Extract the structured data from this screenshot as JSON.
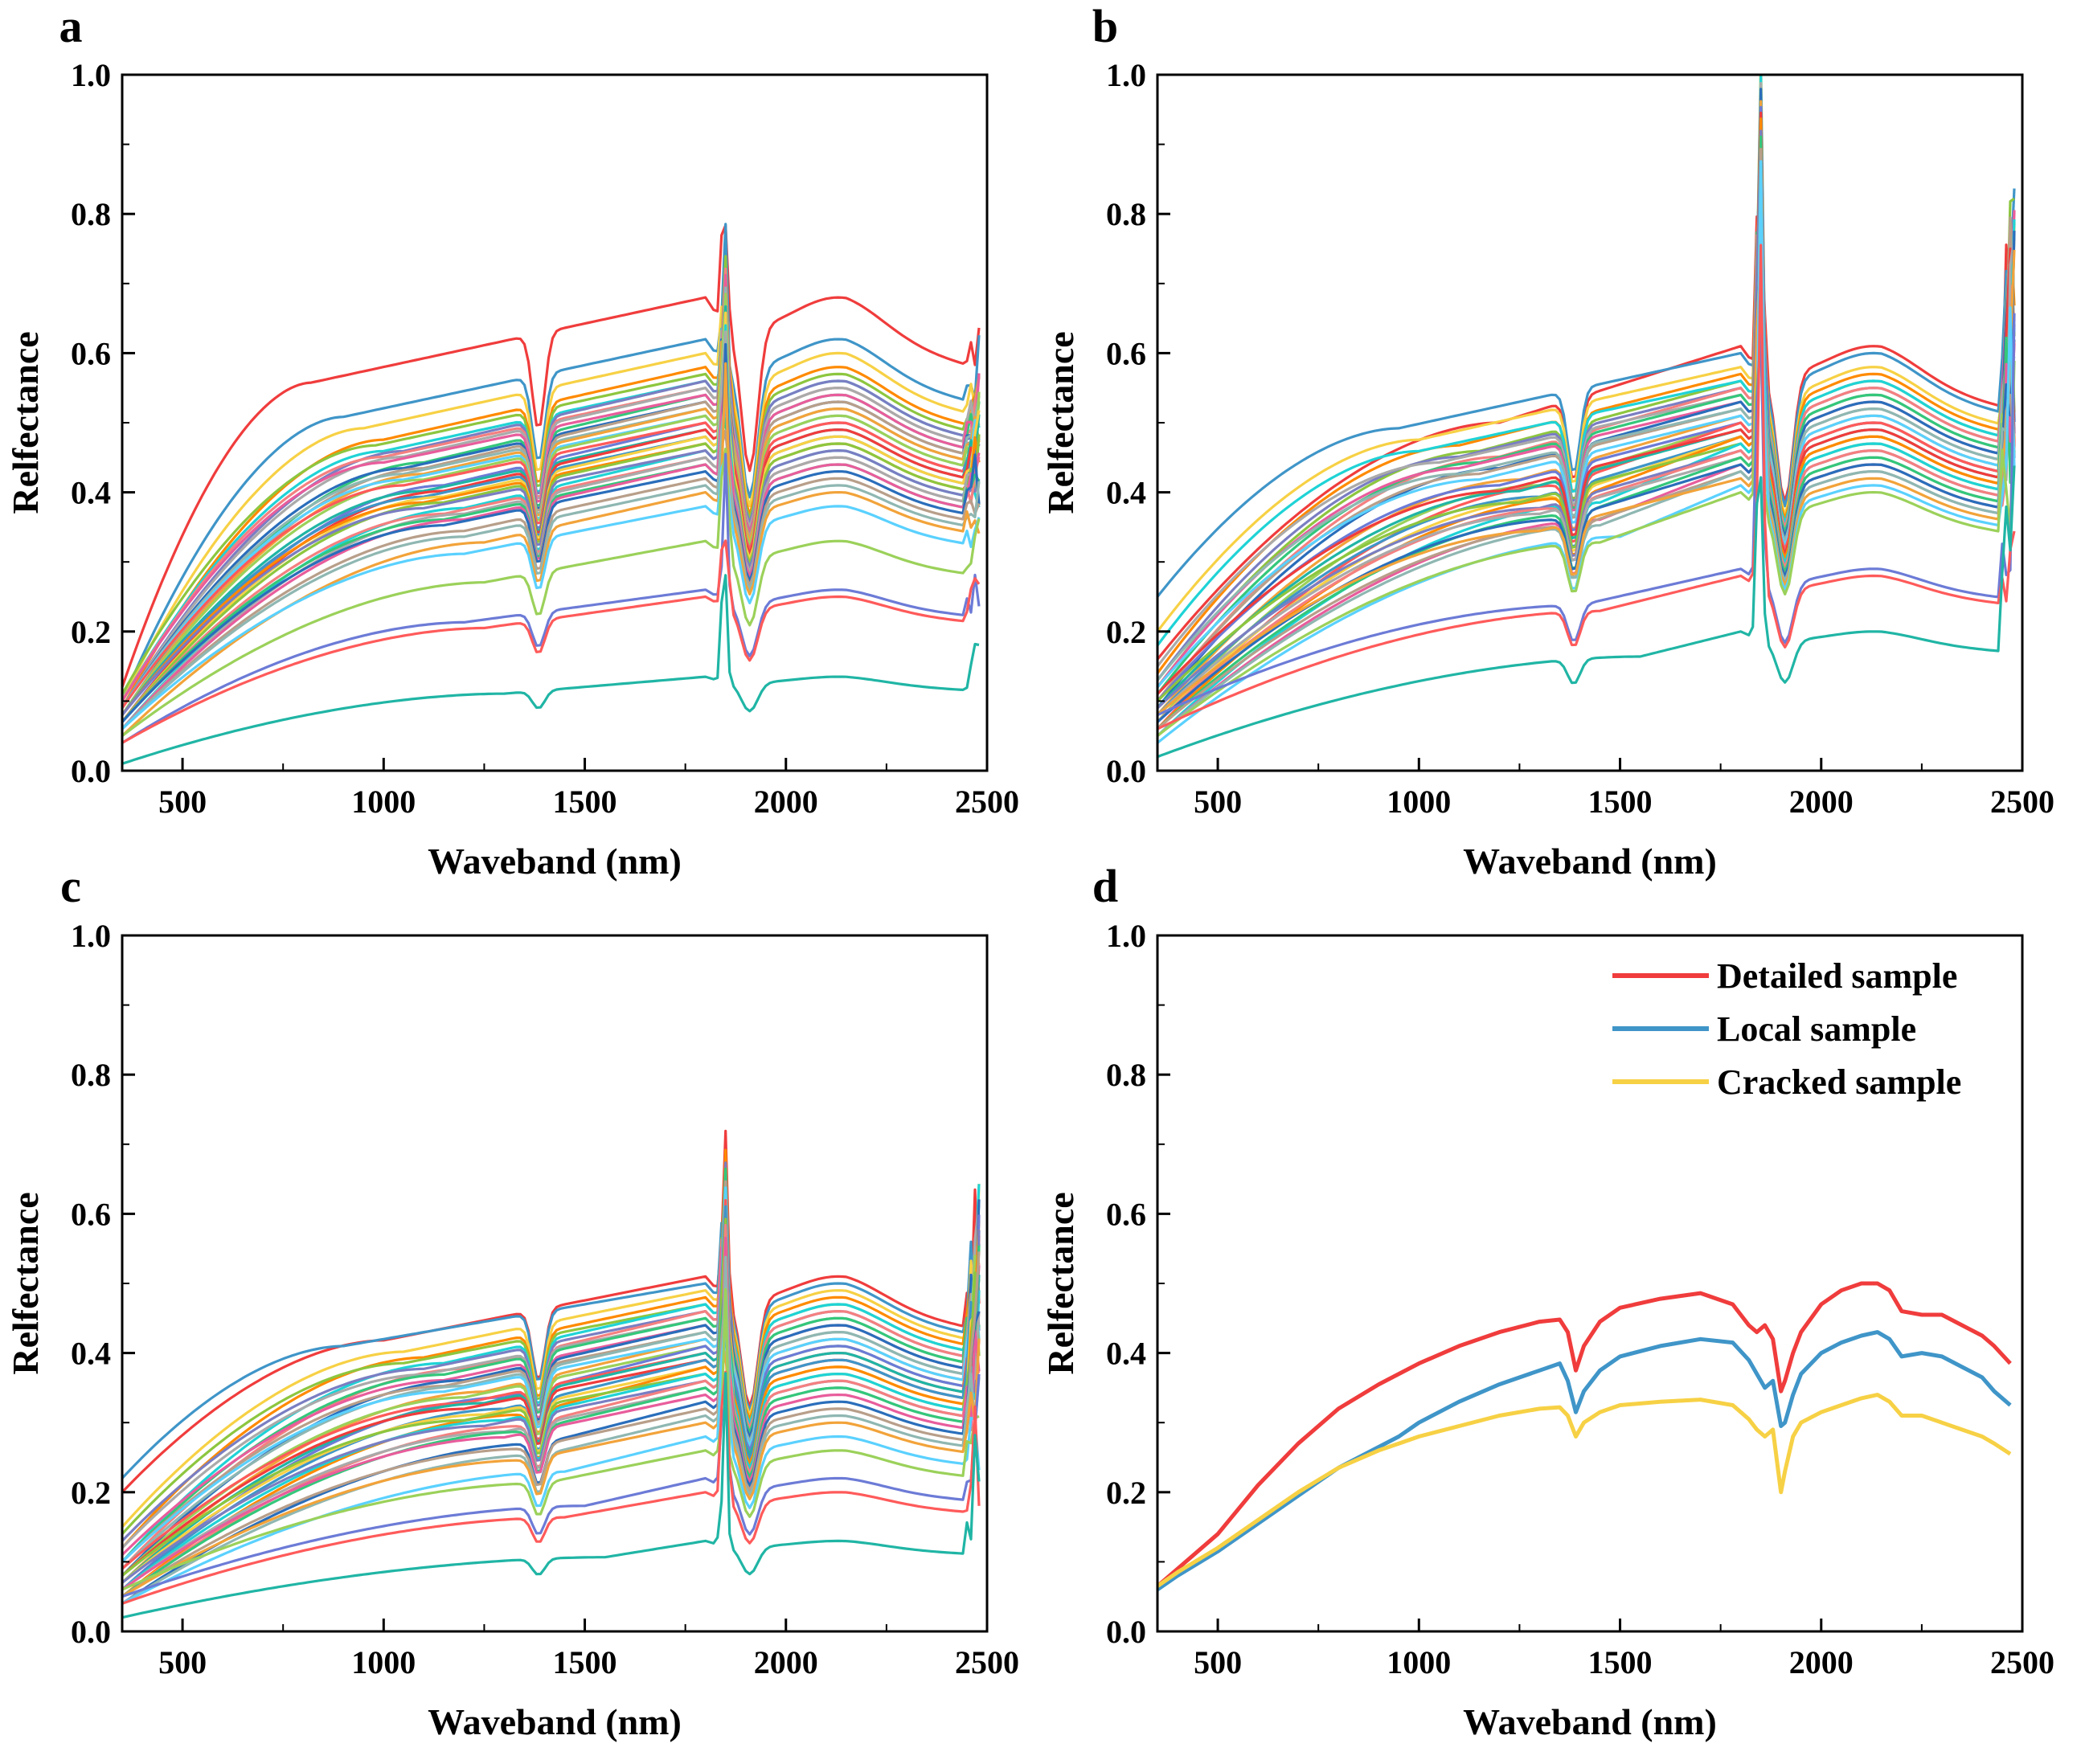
{
  "figure": {
    "background": "#ffffff"
  },
  "chart_data": [
    {
      "panel": "a",
      "type": "line",
      "xlabel": "Waveband (nm)",
      "ylabel": "Relfectance",
      "xlim": [
        350,
        2500
      ],
      "ylim": [
        0,
        1.0
      ],
      "xticks": [
        500,
        1000,
        1500,
        2000,
        2500
      ],
      "yticks": [
        0.0,
        0.2,
        0.4,
        0.6,
        0.8,
        1.0
      ],
      "ytick_labels": [
        "0.0",
        "0.2",
        "0.4",
        "0.6",
        "0.8",
        "1.0"
      ],
      "series_template": "leaf",
      "spectra_plateau": [
        0.68,
        0.62,
        0.6,
        0.58,
        0.57,
        0.56,
        0.56,
        0.55,
        0.55,
        0.54,
        0.54,
        0.53,
        0.53,
        0.52,
        0.52,
        0.51,
        0.51,
        0.5,
        0.5,
        0.49,
        0.49,
        0.48,
        0.48,
        0.47,
        0.47,
        0.46,
        0.46,
        0.45,
        0.45,
        0.44,
        0.44,
        0.43,
        0.42,
        0.41,
        0.4,
        0.38,
        0.33,
        0.26,
        0.25,
        0.135
      ],
      "spectra_start": [
        0.12,
        0.1,
        0.1,
        0.09,
        0.11,
        0.1,
        0.09,
        0.1,
        0.09,
        0.08,
        0.1,
        0.09,
        0.08,
        0.09,
        0.08,
        0.09,
        0.08,
        0.07,
        0.09,
        0.08,
        0.07,
        0.08,
        0.07,
        0.08,
        0.07,
        0.06,
        0.08,
        0.07,
        0.06,
        0.07,
        0.06,
        0.07,
        0.06,
        0.06,
        0.05,
        0.06,
        0.05,
        0.04,
        0.04,
        0.01
      ],
      "spectra_knee": [
        820,
        900,
        950,
        1000,
        980,
        1000,
        1050,
        1000,
        1050,
        1100,
        1000,
        1050,
        1100,
        1050,
        1100,
        1050,
        1100,
        1150,
        1050,
        1100,
        1150,
        1100,
        1150,
        1100,
        1150,
        1200,
        1100,
        1150,
        1200,
        1150,
        1200,
        1150,
        1200,
        1200,
        1250,
        1200,
        1250,
        1200,
        1250,
        1300
      ],
      "peak_1850": 0.2,
      "spike_2470": 0.08
    },
    {
      "panel": "b",
      "type": "line",
      "xlabel": "Waveband (nm)",
      "ylabel": "Relfectance",
      "xlim": [
        350,
        2500
      ],
      "ylim": [
        0,
        1.0
      ],
      "xticks": [
        500,
        1000,
        1500,
        2000,
        2500
      ],
      "yticks": [
        0.0,
        0.2,
        0.4,
        0.6,
        0.8,
        1.0
      ],
      "ytick_labels": [
        "0.0",
        "0.2",
        "0.4",
        "0.6",
        "0.8",
        "1.0"
      ],
      "series_template": "leaf",
      "spectra_plateau": [
        0.61,
        0.6,
        0.58,
        0.57,
        0.56,
        0.56,
        0.55,
        0.55,
        0.54,
        0.54,
        0.53,
        0.53,
        0.52,
        0.52,
        0.51,
        0.51,
        0.5,
        0.5,
        0.5,
        0.49,
        0.49,
        0.48,
        0.48,
        0.48,
        0.47,
        0.47,
        0.46,
        0.46,
        0.45,
        0.45,
        0.44,
        0.44,
        0.43,
        0.43,
        0.42,
        0.41,
        0.4,
        0.29,
        0.28,
        0.2
      ],
      "spectra_start": [
        0.16,
        0.25,
        0.2,
        0.14,
        0.12,
        0.18,
        0.13,
        0.1,
        0.15,
        0.11,
        0.12,
        0.09,
        0.1,
        0.13,
        0.08,
        0.12,
        0.07,
        0.1,
        0.06,
        0.09,
        0.11,
        0.08,
        0.07,
        0.06,
        0.1,
        0.05,
        0.09,
        0.07,
        0.08,
        0.06,
        0.05,
        0.07,
        0.06,
        0.05,
        0.08,
        0.04,
        0.05,
        0.08,
        0.06,
        0.02
      ],
      "spectra_knee": [
        1200,
        950,
        1000,
        1100,
        1150,
        1000,
        1100,
        1200,
        1050,
        1150,
        1100,
        1200,
        1150,
        1100,
        1250,
        1150,
        1300,
        1200,
        1350,
        1250,
        1200,
        1300,
        1350,
        1400,
        1250,
        1450,
        1300,
        1350,
        1300,
        1400,
        1450,
        1350,
        1400,
        1450,
        1300,
        1500,
        1450,
        1400,
        1450,
        1550
      ],
      "peak_1850": 0.45,
      "spike_2470": 0.35
    },
    {
      "panel": "c",
      "type": "line",
      "xlabel": "Waveband (nm)",
      "ylabel": "Relfectance",
      "xlim": [
        350,
        2500
      ],
      "ylim": [
        0,
        1.0
      ],
      "xticks": [
        500,
        1000,
        1500,
        2000,
        2500
      ],
      "yticks": [
        0.0,
        0.2,
        0.4,
        0.6,
        0.8,
        1.0
      ],
      "ytick_labels": [
        "0.0",
        "0.2",
        "0.4",
        "0.6",
        "0.8",
        "1.0"
      ],
      "series_template": "leaf",
      "spectra_plateau": [
        0.51,
        0.5,
        0.49,
        0.48,
        0.47,
        0.47,
        0.46,
        0.46,
        0.45,
        0.45,
        0.44,
        0.44,
        0.43,
        0.43,
        0.42,
        0.42,
        0.41,
        0.41,
        0.4,
        0.4,
        0.39,
        0.39,
        0.38,
        0.38,
        0.37,
        0.37,
        0.36,
        0.36,
        0.35,
        0.35,
        0.34,
        0.33,
        0.32,
        0.31,
        0.3,
        0.28,
        0.26,
        0.22,
        0.2,
        0.13
      ],
      "spectra_start": [
        0.2,
        0.22,
        0.15,
        0.12,
        0.14,
        0.1,
        0.13,
        0.09,
        0.12,
        0.1,
        0.11,
        0.08,
        0.1,
        0.09,
        0.07,
        0.1,
        0.08,
        0.06,
        0.09,
        0.07,
        0.08,
        0.06,
        0.07,
        0.05,
        0.08,
        0.06,
        0.07,
        0.05,
        0.06,
        0.05,
        0.06,
        0.04,
        0.05,
        0.04,
        0.05,
        0.04,
        0.06,
        0.05,
        0.04,
        0.02
      ],
      "spectra_knee": [
        1000,
        900,
        1050,
        1100,
        1050,
        1150,
        1100,
        1200,
        1100,
        1150,
        1150,
        1200,
        1150,
        1200,
        1250,
        1150,
        1200,
        1300,
        1200,
        1250,
        1200,
        1300,
        1250,
        1350,
        1200,
        1300,
        1250,
        1350,
        1300,
        1350,
        1300,
        1400,
        1350,
        1400,
        1350,
        1450,
        1400,
        1500,
        1450,
        1550
      ],
      "peak_1850": 0.22,
      "spike_2470": 0.2
    },
    {
      "panel": "d",
      "type": "line",
      "xlabel": "Waveband (nm)",
      "ylabel": "Relfectance",
      "xlim": [
        350,
        2500
      ],
      "ylim": [
        0,
        1.0
      ],
      "xticks": [
        500,
        1000,
        1500,
        2000,
        2500
      ],
      "yticks": [
        0.0,
        0.2,
        0.4,
        0.6,
        0.8,
        1.0
      ],
      "ytick_labels": [
        "0.0",
        "0.2",
        "0.4",
        "0.6",
        "0.8",
        "1.0"
      ],
      "legend_position": "top-right",
      "x": [
        350,
        400,
        500,
        600,
        700,
        800,
        900,
        950,
        1000,
        1100,
        1200,
        1300,
        1350,
        1370,
        1390,
        1410,
        1450,
        1500,
        1600,
        1700,
        1780,
        1820,
        1840,
        1860,
        1880,
        1900,
        1910,
        1930,
        1950,
        2000,
        2050,
        2100,
        2140,
        2170,
        2200,
        2250,
        2300,
        2350,
        2400,
        2430,
        2470
      ],
      "series": [
        {
          "name": "Detailed sample",
          "color": "#f03c3c",
          "values": [
            0.065,
            0.09,
            0.14,
            0.21,
            0.27,
            0.32,
            0.355,
            0.37,
            0.385,
            0.41,
            0.43,
            0.445,
            0.448,
            0.43,
            0.375,
            0.41,
            0.445,
            0.465,
            0.478,
            0.486,
            0.47,
            0.44,
            0.43,
            0.44,
            0.42,
            0.345,
            0.36,
            0.4,
            0.43,
            0.47,
            0.49,
            0.5,
            0.5,
            0.49,
            0.46,
            0.455,
            0.455,
            0.44,
            0.425,
            0.41,
            0.385
          ]
        },
        {
          "name": "Local sample",
          "color": "#3f95c8",
          "values": [
            0.06,
            0.08,
            0.115,
            0.155,
            0.195,
            0.235,
            0.265,
            0.28,
            0.3,
            0.33,
            0.355,
            0.375,
            0.385,
            0.36,
            0.315,
            0.345,
            0.375,
            0.395,
            0.41,
            0.42,
            0.415,
            0.39,
            0.37,
            0.35,
            0.36,
            0.295,
            0.3,
            0.34,
            0.37,
            0.4,
            0.415,
            0.425,
            0.43,
            0.42,
            0.395,
            0.4,
            0.395,
            0.38,
            0.365,
            0.345,
            0.325
          ]
        },
        {
          "name": "Cracked sample",
          "color": "#f7d145",
          "values": [
            0.065,
            0.085,
            0.12,
            0.16,
            0.2,
            0.235,
            0.26,
            0.27,
            0.28,
            0.295,
            0.31,
            0.32,
            0.322,
            0.31,
            0.28,
            0.3,
            0.315,
            0.325,
            0.33,
            0.333,
            0.325,
            0.305,
            0.29,
            0.28,
            0.29,
            0.2,
            0.23,
            0.28,
            0.3,
            0.315,
            0.325,
            0.335,
            0.34,
            0.33,
            0.31,
            0.31,
            0.3,
            0.29,
            0.28,
            0.27,
            0.255
          ]
        }
      ]
    }
  ],
  "palette": [
    "#f03c3c",
    "#3f95c8",
    "#f7d145",
    "#ff8a00",
    "#8dc63f",
    "#1fd3d6",
    "#7a7ec2",
    "#f48080",
    "#aaaaaa",
    "#34c77b",
    "#e85d9c",
    "#2a6ebb",
    "#b89f8a",
    "#8fb7b2",
    "#f2a33a",
    "#5ad1ff",
    "#9bd15a",
    "#6c7bd6",
    "#ff5a5a",
    "#20b5a5"
  ]
}
